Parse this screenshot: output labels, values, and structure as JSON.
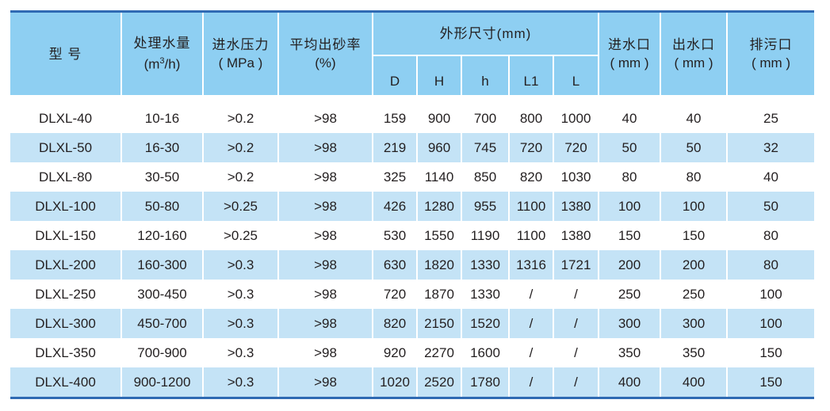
{
  "header": {
    "model": "型 号",
    "flow": "处理水量",
    "flow_unit_pre": "(m",
    "flow_unit_sup": "3",
    "flow_unit_post": "/h)",
    "pressure": "进水压力",
    "pressure_unit": "( MPa )",
    "sand_rate": "平均出砂率",
    "sand_rate_unit": "(%)",
    "dimensions": "外形尺寸(mm)",
    "dim_cols": [
      "D",
      "H",
      "h",
      "L1",
      "L"
    ],
    "inlet": "进水口",
    "inlet_unit": "( mm )",
    "outlet": "出水口",
    "outlet_unit": "( mm )",
    "drain": "排污口",
    "drain_unit": "( mm )"
  },
  "rows": [
    [
      "DLXL-40",
      "10-16",
      ">0.2",
      ">98",
      "159",
      "900",
      "700",
      "800",
      "1000",
      "40",
      "40",
      "25"
    ],
    [
      "DLXL-50",
      "16-30",
      ">0.2",
      ">98",
      "219",
      "960",
      "745",
      "720",
      "720",
      "50",
      "50",
      "32"
    ],
    [
      "DLXL-80",
      "30-50",
      ">0.2",
      ">98",
      "325",
      "1140",
      "850",
      "820",
      "1030",
      "80",
      "80",
      "40"
    ],
    [
      "DLXL-100",
      "50-80",
      ">0.25",
      ">98",
      "426",
      "1280",
      "955",
      "1100",
      "1380",
      "100",
      "100",
      "50"
    ],
    [
      "DLXL-150",
      "120-160",
      ">0.25",
      ">98",
      "530",
      "1550",
      "1190",
      "1100",
      "1380",
      "150",
      "150",
      "80"
    ],
    [
      "DLXL-200",
      "160-300",
      ">0.3",
      ">98",
      "630",
      "1820",
      "1330",
      "1316",
      "1721",
      "200",
      "200",
      "80"
    ],
    [
      "DLXL-250",
      "300-450",
      ">0.3",
      ">98",
      "720",
      "1870",
      "1330",
      "/",
      "/",
      "250",
      "250",
      "100"
    ],
    [
      "DLXL-300",
      "450-700",
      ">0.3",
      ">98",
      "820",
      "2150",
      "1520",
      "/",
      "/",
      "300",
      "300",
      "100"
    ],
    [
      "DLXL-350",
      "700-900",
      ">0.3",
      ">98",
      "920",
      "2270",
      "1600",
      "/",
      "/",
      "350",
      "350",
      "150"
    ],
    [
      "DLXL-400",
      "900-1200",
      ">0.3",
      ">98",
      "1020",
      "2520",
      "1780",
      "/",
      "/",
      "400",
      "400",
      "150"
    ]
  ],
  "colors": {
    "header_bg": "#8ecff2",
    "stripe_bg": "#c4e3f6",
    "rule": "#2f6ab3"
  }
}
